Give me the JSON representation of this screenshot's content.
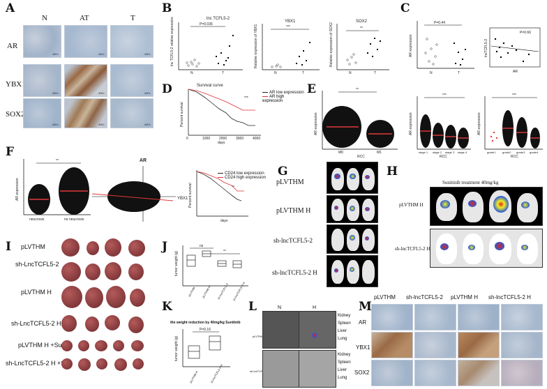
{
  "panels": {
    "A": {
      "letter": "A",
      "columns": [
        "N",
        "AT",
        "T"
      ],
      "rows": [
        "AR",
        "YBX1",
        "SOX2"
      ],
      "magnification": "400×"
    },
    "B": {
      "letter": "B",
      "plots": [
        {
          "title": "lnc TCFL5-2",
          "ylabel": "lnc TCFL5-2 relative expression",
          "pvalue": "P=0.036",
          "groups": [
            "N",
            "T"
          ]
        },
        {
          "title": "YBX1",
          "ylabel": "Relative expression of YBX1",
          "sig": "***",
          "groups": [
            "N",
            "T"
          ]
        },
        {
          "title": "SOX2",
          "ylabel": "Relative expression of SOX2",
          "sig": "**",
          "groups": [
            "N",
            "T"
          ]
        }
      ]
    },
    "C": {
      "letter": "C",
      "scatter_left": {
        "ylabel": "AR expression",
        "pvalue": "P=0.44",
        "groups": [
          "N",
          "T"
        ]
      },
      "scatter_right": {
        "xlabel": "AR",
        "ylabel": "lncTCFL5-2",
        "pvalue": "P=0.66"
      }
    },
    "D": {
      "letter": "D",
      "title": "Survival curve",
      "xlabel": "days",
      "ylabel": "Percent survival",
      "legend": [
        "AR low expression",
        "AR high expression"
      ],
      "sig": "***",
      "xticks": [
        "0",
        "1000",
        "2000",
        "3000",
        "4000"
      ]
    },
    "E": {
      "letter": "E",
      "plot1": {
        "ylabel": "AR expression",
        "xlabel": "RCC",
        "groups": [
          "M0",
          "M1"
        ],
        "sig": "**"
      },
      "plot2": {
        "ylabel": "AR expression",
        "xlabel": "RCC",
        "groups": [
          "stage 1",
          "stage 2",
          "stage 3",
          "stage 4"
        ],
        "sig": "***"
      },
      "plot3": {
        "ylabel": "AR expression",
        "xlabel": "RCC",
        "groups": [
          "grade1",
          "grade2",
          "grade3",
          "grade4"
        ],
        "sig": "***"
      }
    },
    "F": {
      "letter": "F",
      "plot1": {
        "ylabel": "AR expression",
        "groups": [
          "neucrosis",
          "no neucrosis"
        ],
        "sig": "**"
      },
      "plot2": {
        "title": "AR",
        "xlabel": "YBX1"
      },
      "plot3": {
        "ylabel": "Percent survival",
        "xlabel": "days",
        "legend": [
          "CD24 low expression",
          "CD24 high expression"
        ],
        "sig": "**"
      }
    },
    "G": {
      "letter": "G",
      "rows": [
        "pLVTHM",
        "pLVTHM H",
        "sh-lncTCFL5-2",
        "sh-lncTCFL5-2 H"
      ]
    },
    "H": {
      "letter": "H",
      "title": "Sunitinib treatment 40mg/kg",
      "rows": [
        "pLVTHM H",
        "sh-lncTCFL5-2 H"
      ]
    },
    "I": {
      "letter": "I",
      "rows": [
        "pLVTHM",
        "sh-LncTCFL5-2",
        "pLVTHM H",
        "sh-LncTCFL5-2 H",
        "pLVTHM H +Su",
        "sh-LncTCFL5-2 H +Su"
      ]
    },
    "J": {
      "letter": "J",
      "ylabel": "tumor weight (g)",
      "sig1": "ns",
      "sig2": "**",
      "groups": [
        "pLVTHM",
        "pLVTHM H",
        "sh-lncTCFL5-2",
        "sh-lncTCFL5-2 H"
      ]
    },
    "K": {
      "letter": "K",
      "title": "the weight reduction by 40mg/kg Sunitinib",
      "ylabel": "tumor weight (g)",
      "pvalue": "P=0.16",
      "groups": [
        "pLVTHM H",
        "sh-lncTCFL5-2 H"
      ]
    },
    "L": {
      "letter": "L",
      "columns": [
        "N",
        "H"
      ],
      "rows": [
        "pLVTHM",
        "sh-lncTCFL5-2"
      ],
      "organs": [
        "Kidney",
        "Spleen",
        "Liver",
        "Lung",
        "Kidney",
        "Spleen",
        "Liver",
        "Lung"
      ]
    },
    "M": {
      "letter": "M",
      "columns": [
        "pLVTHM",
        "sh-lncTCFL5-2",
        "pLVTHM H",
        "sh-lncTCFL5-2 H"
      ],
      "rows": [
        "AR",
        "YBX1",
        "SOX2"
      ]
    }
  },
  "colors": {
    "ihc_blue": "#a9bdd6",
    "ihc_brown": "#9a6a45",
    "survival_low": "#222222",
    "survival_high": "#d33",
    "scatter_red": "#e03a3a",
    "tumor": "#7a2a2f"
  }
}
